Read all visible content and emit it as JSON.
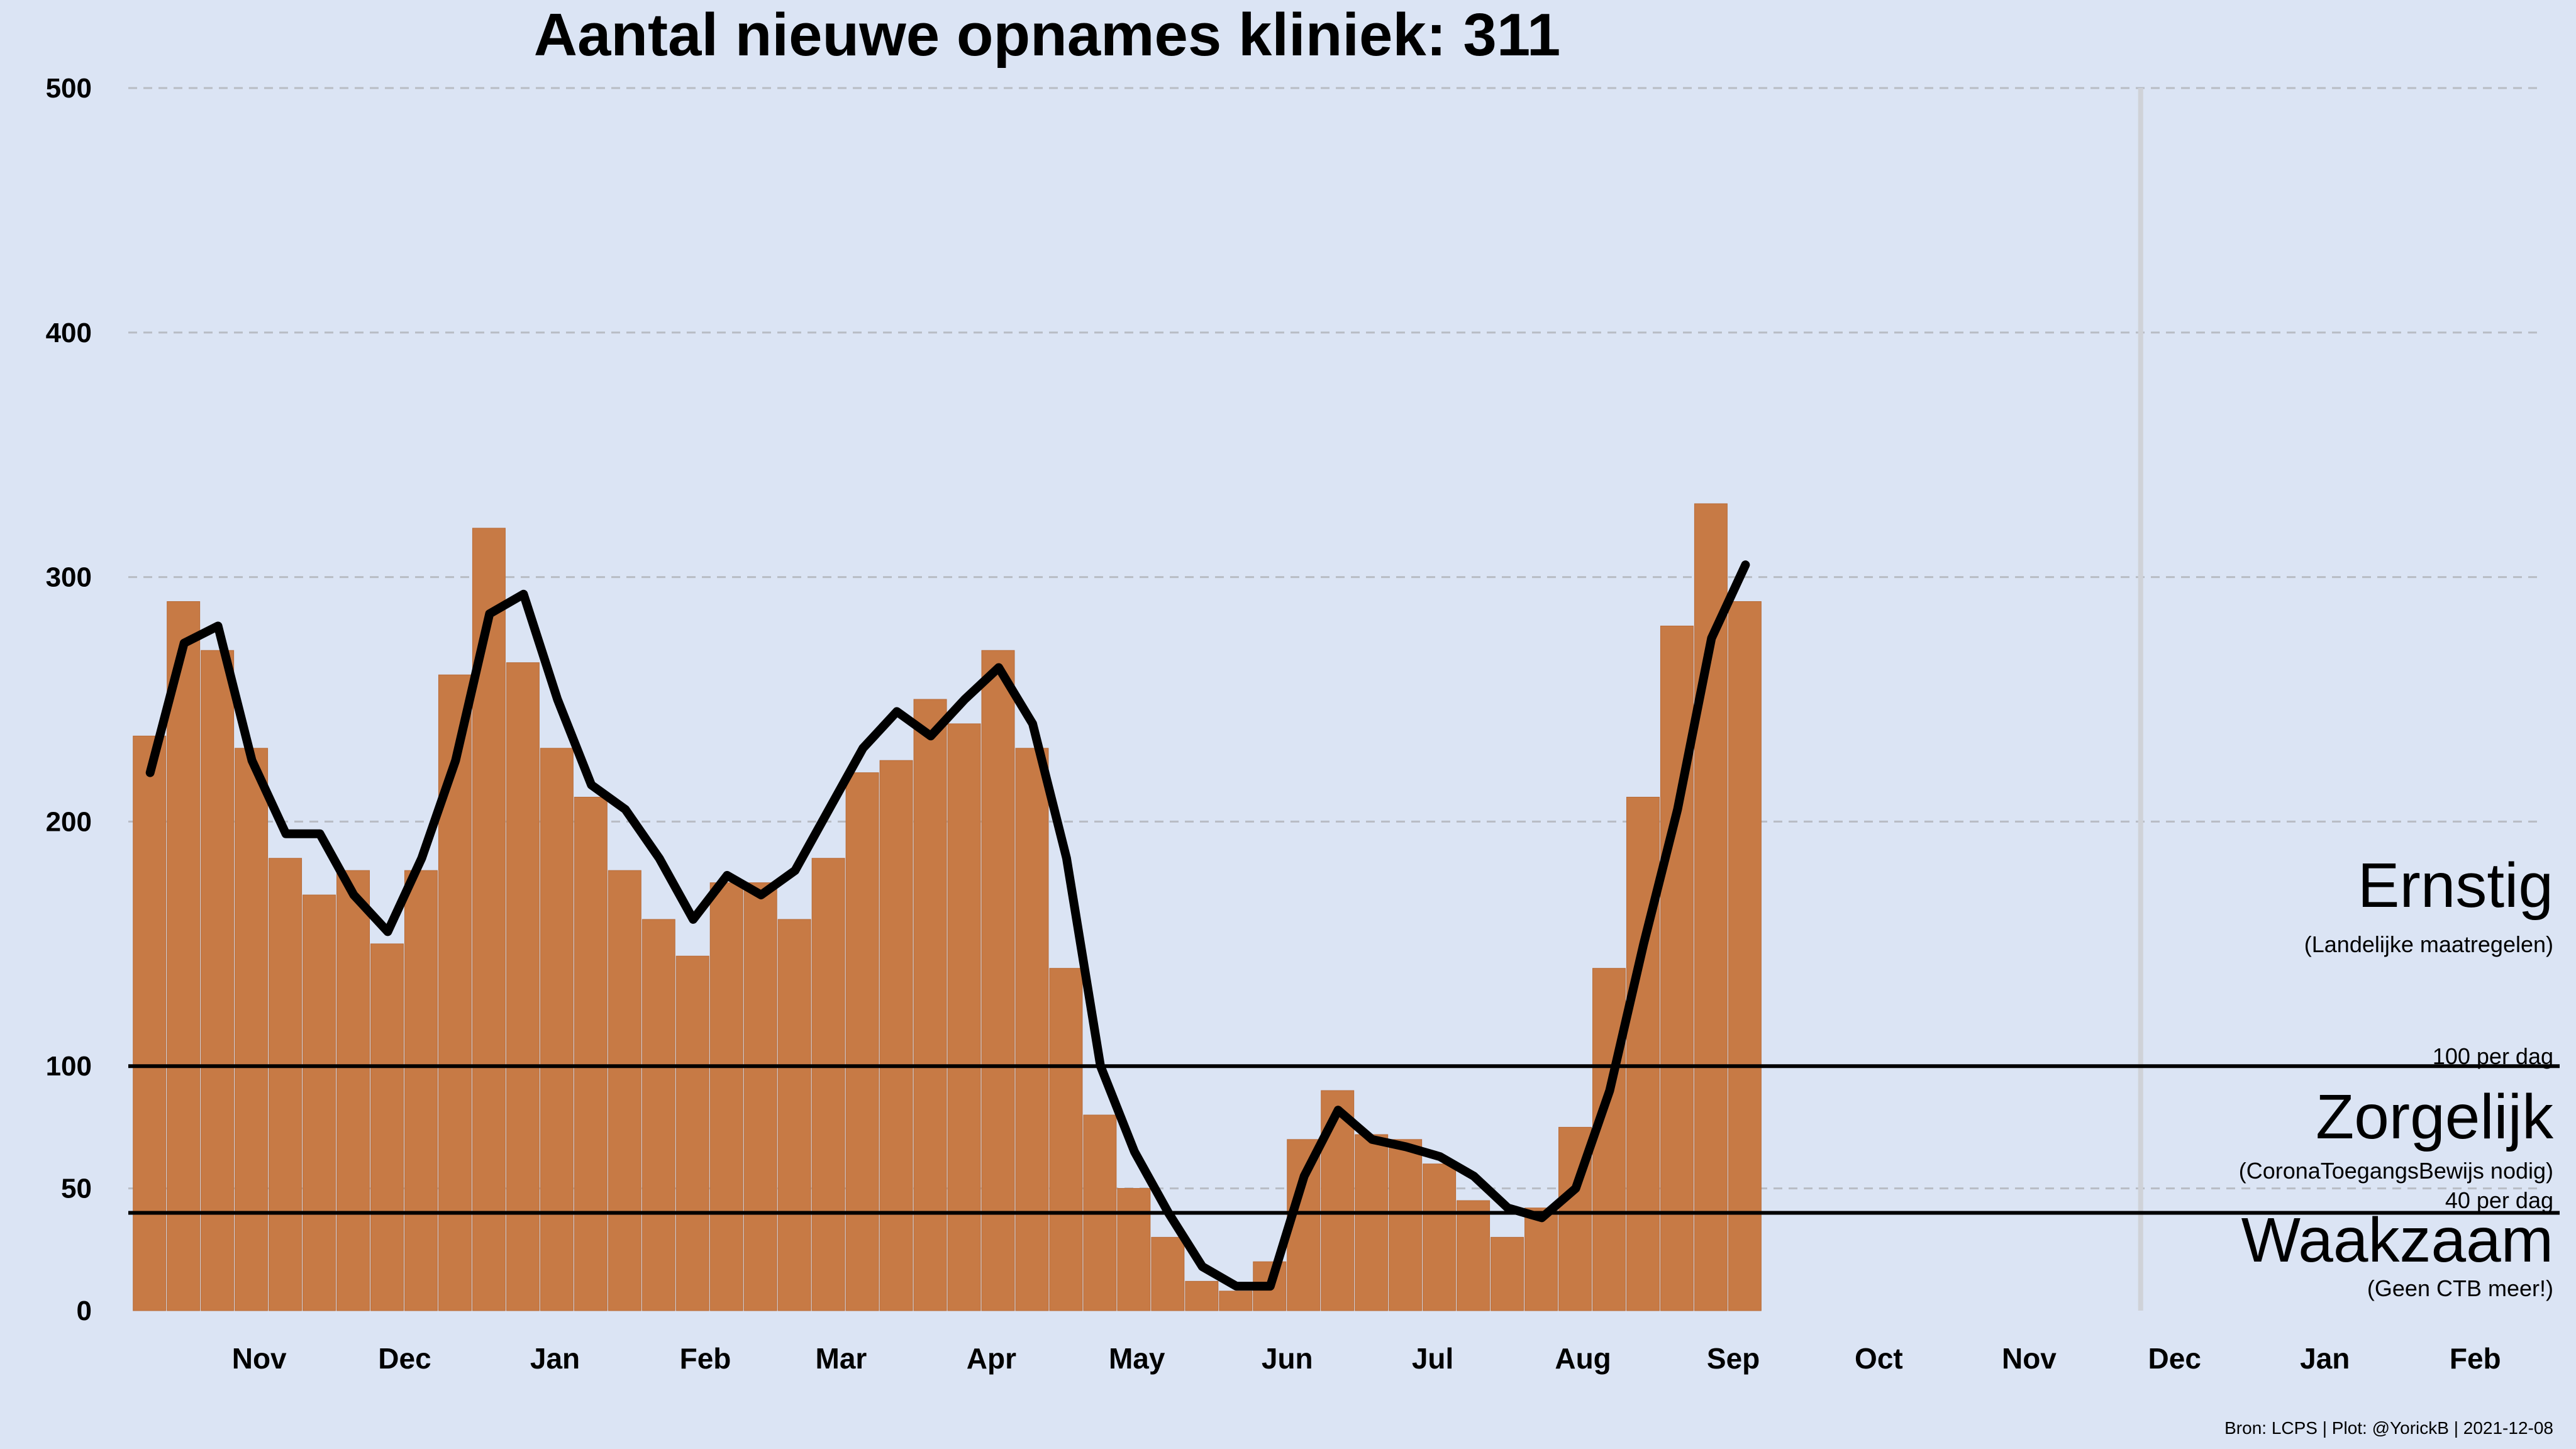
{
  "title": "Aantal nieuwe opnames kliniek:  311",
  "credit": "Bron: LCPS | Plot: @YorickB |  2021-12-08",
  "colors": {
    "background": "#dbe4f4",
    "bars": "#c77a45",
    "bar_edge": "#b86a36",
    "line": "#000000",
    "grid": "#b8bcc4",
    "today": "#cfd2d8"
  },
  "zones": [
    {
      "title": "Ernstig",
      "subtitle": "(Landelijke maatregelen)"
    },
    {
      "title": "Zorgelijk",
      "subtitle": "(CoronaToegangsBewijs nodig)"
    },
    {
      "title": "Waakzaam",
      "subtitle": "(Geen CTB meer!)"
    }
  ],
  "thresholds": [
    {
      "value": 100,
      "label": "100 per dag"
    },
    {
      "value": 40,
      "label": "40 per dag"
    }
  ],
  "chart_data": {
    "type": "bar",
    "title": "Aantal nieuwe opnames kliniek:  311",
    "xlabel": "",
    "ylabel": "",
    "ylim": [
      0,
      500
    ],
    "yticks": [
      0,
      50,
      100,
      200,
      300,
      400,
      500
    ],
    "grid": "horizontal dashed",
    "x_start": "2020-10-19",
    "x_end": "2022-02-28",
    "month_ticks": [
      {
        "label": "Nov",
        "date": "2020-11-15"
      },
      {
        "label": "Dec",
        "date": "2020-12-15"
      },
      {
        "label": "Jan",
        "date": "2021-01-15"
      },
      {
        "label": "Feb",
        "date": "2021-02-15"
      },
      {
        "label": "Mar",
        "date": "2021-03-15"
      },
      {
        "label": "Apr",
        "date": "2021-04-15"
      },
      {
        "label": "May",
        "date": "2021-05-15"
      },
      {
        "label": "Jun",
        "date": "2021-06-15"
      },
      {
        "label": "Jul",
        "date": "2021-07-15"
      },
      {
        "label": "Aug",
        "date": "2021-08-15"
      },
      {
        "label": "Sep",
        "date": "2021-09-15"
      },
      {
        "label": "Oct",
        "date": "2021-10-15"
      },
      {
        "label": "Nov",
        "date": "2021-11-15"
      },
      {
        "label": "Dec",
        "date": "2021-12-15"
      },
      {
        "label": "Jan",
        "date": "2022-01-15"
      },
      {
        "label": "Feb",
        "date": "2022-02-15"
      }
    ],
    "today": "2021-12-08",
    "series": [
      {
        "type": "bar",
        "start_date": "2020-10-20",
        "interval_days": 7,
        "values": [
          235,
          290,
          270,
          230,
          185,
          170,
          180,
          150,
          180,
          260,
          320,
          265,
          230,
          210,
          180,
          160,
          145,
          175,
          175,
          160,
          185,
          220,
          225,
          250,
          240,
          270,
          230,
          140,
          80,
          50,
          30,
          12,
          8,
          20,
          70,
          90,
          72,
          70,
          60,
          45,
          30,
          42,
          75,
          140,
          210,
          280,
          330,
          290
        ]
      },
      {
        "type": "line",
        "start_date": "2020-10-20",
        "interval_days": 7,
        "values": [
          220,
          273,
          280,
          225,
          195,
          195,
          170,
          155,
          185,
          225,
          285,
          293,
          250,
          215,
          205,
          185,
          160,
          178,
          170,
          180,
          205,
          230,
          245,
          235,
          250,
          263,
          240,
          185,
          100,
          65,
          40,
          18,
          10,
          10,
          55,
          82,
          70,
          67,
          63,
          55,
          42,
          38,
          50,
          90,
          150,
          205,
          275,
          305
        ]
      }
    ]
  }
}
